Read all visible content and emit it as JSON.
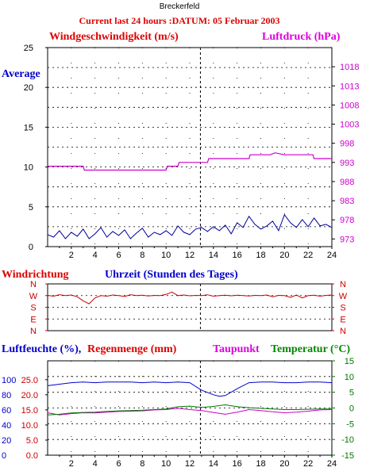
{
  "site_name": "Breckerfeld",
  "header": "Current last 24 hours :DATUM: 05 Februar 2003",
  "colors": {
    "wind": "#000099",
    "pressure": "#cc00cc",
    "direction": "#cc0000",
    "humidity": "#0000cc",
    "rain": "#cc0000",
    "dewpoint": "#cc00cc",
    "temperature": "#007700",
    "title_red": "#dd0000",
    "label_blue": "#0000cc",
    "label_magenta": "#dd00dd",
    "label_green": "#008800",
    "red_ticks": "#cc0000"
  },
  "chart_data": [
    {
      "type": "line",
      "title": "Windgeschwindigkeit (m/s)",
      "title_right": "Luftdruck (hPa)",
      "series_label": "Average",
      "xlim": [
        0,
        24
      ],
      "ylim": [
        0,
        25
      ],
      "ylim_right": [
        971,
        1023
      ],
      "x_ticks": [
        "2",
        "4",
        "6",
        "8",
        "10",
        "12",
        "14",
        "16",
        "18",
        "20",
        "22",
        "24"
      ],
      "y_ticks": [
        "0",
        "5",
        "10",
        "15",
        "20",
        "25"
      ],
      "y_ticks_right": [
        "973",
        "978",
        "983",
        "988",
        "993",
        "998",
        "1003",
        "1008",
        "1013",
        "1018"
      ],
      "series": [
        {
          "name": "Windgeschwindigkeit",
          "axis": "left",
          "x": [
            0,
            0.5,
            1,
            1.5,
            2,
            2.5,
            3,
            3.5,
            4,
            4.5,
            5,
            5.5,
            6,
            6.5,
            7,
            7.5,
            8,
            8.5,
            9,
            9.5,
            10,
            10.5,
            11,
            11.5,
            12,
            12.5,
            13,
            13.5,
            14,
            14.5,
            15,
            15.5,
            16,
            16.5,
            17,
            17.5,
            18,
            18.5,
            19,
            19.5,
            20,
            20.5,
            21,
            21.5,
            22,
            22.5,
            23,
            23.5,
            24
          ],
          "values": [
            1.5,
            1.2,
            2.0,
            1.0,
            1.8,
            1.3,
            2.2,
            1.0,
            1.6,
            2.4,
            1.2,
            1.9,
            1.4,
            2.1,
            1.0,
            1.7,
            2.3,
            1.2,
            1.8,
            1.5,
            2.0,
            1.4,
            2.6,
            1.8,
            1.5,
            2.2,
            2.4,
            1.9,
            2.5,
            2.0,
            2.7,
            1.6,
            3.0,
            2.4,
            3.8,
            2.8,
            2.2,
            2.6,
            3.2,
            2.0,
            4.0,
            3.0,
            2.4,
            3.4,
            2.5,
            3.6,
            2.6,
            2.8,
            2.4
          ]
        },
        {
          "name": "Luftdruck",
          "axis": "right",
          "x": [
            0,
            3,
            3.1,
            8.4,
            8.5,
            10,
            10.1,
            11,
            11.1,
            13.5,
            13.6,
            17,
            17.1,
            18.8,
            19.2,
            20,
            20.1,
            22.4,
            22.5,
            24
          ],
          "values": [
            992,
            992,
            991,
            991,
            991,
            991,
            992,
            992,
            993,
            993,
            994,
            994,
            995,
            995,
            995.5,
            995,
            995,
            995,
            994,
            994
          ]
        }
      ]
    },
    {
      "type": "line",
      "title": "Windrichtung",
      "xlabel": "Uhrzeit (Stunden des Tages)",
      "y_ticks": [
        "N",
        "W",
        "S",
        "E",
        "N"
      ],
      "series": [
        {
          "name": "Windrichtung",
          "x": [
            0,
            0.5,
            1,
            1.5,
            2,
            2.5,
            3,
            3.5,
            4,
            4.5,
            5,
            5.5,
            6,
            6.5,
            7,
            7.5,
            8,
            8.5,
            9,
            9.5,
            10,
            10.5,
            11,
            11.5,
            12,
            12.5,
            13,
            13.5,
            14,
            14.5,
            15,
            15.5,
            16,
            16.5,
            17,
            17.5,
            18,
            18.5,
            19,
            19.5,
            20,
            20.5,
            21,
            21.5,
            22,
            22.5,
            23,
            23.5,
            24
          ],
          "values": [
            0.98,
            1.05,
            0.92,
            1.0,
            0.95,
            1.1,
            1.45,
            1.7,
            1.2,
            1.0,
            1.05,
            0.95,
            1.0,
            1.08,
            0.92,
            1.0,
            0.96,
            1.04,
            0.98,
            1.0,
            0.9,
            0.7,
            1.0,
            0.95,
            1.02,
            0.98,
            1.0,
            0.93,
            1.05,
            1.0,
            0.97,
            1.02,
            0.96,
            1.0,
            1.04,
            0.98,
            1.0,
            0.95,
            1.1,
            0.98,
            1.0,
            1.15,
            0.95,
            1.2,
            1.0,
            0.96,
            1.05,
            0.98,
            0.95
          ]
        }
      ]
    },
    {
      "type": "line",
      "labels": [
        "Luftfeuchte (%),",
        "Regenmenge (mm)",
        "Taupunkt",
        "Temperatur (°C)"
      ],
      "xlim": [
        0,
        24
      ],
      "ylim_humidity": [
        0,
        125
      ],
      "ylim_rain": [
        0,
        31.25
      ],
      "ylim_temperature": [
        -15,
        15
      ],
      "x_ticks": [
        "2",
        "4",
        "6",
        "8",
        "10",
        "12",
        "14",
        "16",
        "18",
        "20",
        "22",
        "24"
      ],
      "y_ticks_humidity": [
        "0",
        "20",
        "40",
        "60",
        "80",
        "100"
      ],
      "y_ticks_rain": [
        "0.0",
        "5.0",
        "10.0",
        "15.0",
        "20.0",
        "25.0"
      ],
      "y_ticks_temperature": [
        "-15",
        "-10",
        "-5",
        "0",
        "5",
        "10",
        "15"
      ],
      "series": [
        {
          "name": "Luftfeuchte",
          "axis": "humidity",
          "x": [
            0,
            1,
            2,
            3,
            4,
            5,
            6,
            7,
            8,
            9,
            10,
            11,
            12,
            13,
            14,
            14.5,
            15,
            16,
            17,
            18,
            19,
            20,
            21,
            22,
            23,
            24
          ],
          "values": [
            92,
            94,
            96,
            97,
            96,
            97,
            97,
            97,
            96,
            97,
            96,
            97,
            96,
            86,
            80,
            78,
            79,
            88,
            96,
            97,
            97,
            96,
            96,
            97,
            97,
            96
          ]
        },
        {
          "name": "Taupunkt",
          "axis": "temperature",
          "x": [
            0,
            1,
            2,
            3,
            4,
            5,
            6,
            7,
            8,
            9,
            10,
            11,
            12,
            13,
            14,
            15,
            16,
            17,
            18,
            19,
            20,
            21,
            22,
            23,
            24
          ],
          "values": [
            -1.5,
            -2.2,
            -1.8,
            -1.5,
            -1.6,
            -1.3,
            -1.1,
            -1.0,
            -0.9,
            -0.6,
            -0.5,
            -0.1,
            -0.5,
            -0.8,
            -1.4,
            -2.0,
            -1.3,
            -0.5,
            -0.8,
            -1.2,
            -1.5,
            -1.3,
            -1.0,
            -0.6,
            -0.5
          ]
        },
        {
          "name": "Temperatur",
          "axis": "temperature",
          "x": [
            0,
            1,
            2,
            3,
            4,
            5,
            6,
            7,
            8,
            9,
            10,
            11,
            12,
            13,
            14,
            15,
            16,
            17,
            18,
            19,
            20,
            21,
            22,
            23,
            24
          ],
          "values": [
            -2.2,
            -2.0,
            -1.6,
            -1.4,
            -1.3,
            -1.1,
            -0.9,
            -0.8,
            -0.7,
            -0.5,
            -0.3,
            0.4,
            0.6,
            0.2,
            0.5,
            1.0,
            0.4,
            0.1,
            -0.1,
            -0.3,
            -0.5,
            -0.5,
            -0.4,
            -0.3,
            -0.3
          ]
        }
      ]
    }
  ]
}
